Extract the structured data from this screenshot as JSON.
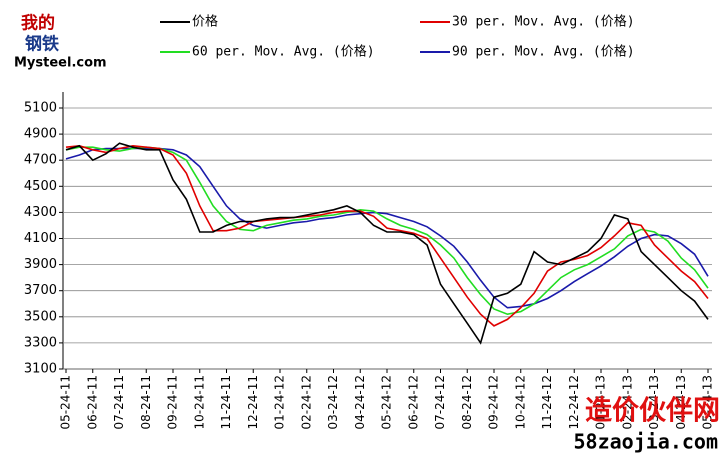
{
  "chart_data": {
    "type": "line",
    "logo": {
      "top": "我的",
      "middle": "钢铁",
      "bottom": "Mysteel.com"
    },
    "watermark": {
      "title": "造价伙伴网",
      "url": "58zaojia.com"
    },
    "categories": [
      "05-24-11",
      null,
      "06-24-11",
      null,
      "07-24-11",
      null,
      "08-24-11",
      null,
      "09-24-11",
      null,
      "10-24-11",
      null,
      "11-24-11",
      null,
      "12-24-11",
      null,
      "01-24-12",
      null,
      "02-24-12",
      null,
      "03-24-12",
      null,
      "04-24-12",
      null,
      "05-24-12",
      null,
      "06-24-12",
      null,
      "07-24-12",
      null,
      "08-24-12",
      null,
      "09-24-12",
      null,
      "10-24-12",
      null,
      "11-24-12",
      null,
      "12-24-12",
      null,
      "01-24-13",
      null,
      "02-24-13",
      null,
      "03-24-13",
      null,
      "04-24-13",
      null,
      "05-24-13"
    ],
    "series": [
      {
        "name": "价格",
        "color": "#000000",
        "values": [
          4780,
          4810,
          4700,
          4750,
          4830,
          4800,
          4780,
          4780,
          4550,
          4400,
          4150,
          4150,
          4200,
          4230,
          4230,
          4250,
          4260,
          4260,
          4280,
          4300,
          4320,
          4350,
          4300,
          4200,
          4150,
          4150,
          4130,
          4050,
          3750,
          3600,
          3450,
          3300,
          3650,
          3680,
          3750,
          4000,
          3920,
          3900,
          3950,
          4000,
          4100,
          4280,
          4250,
          4000,
          3900,
          3800,
          3700,
          3620,
          3480
        ]
      },
      {
        "name": "30 per. Mov. Avg. (价格)",
        "color": "#e00000",
        "values": [
          4800,
          4810,
          4780,
          4760,
          4790,
          4810,
          4800,
          4790,
          4740,
          4600,
          4350,
          4160,
          4160,
          4180,
          4230,
          4240,
          4250,
          4260,
          4270,
          4280,
          4300,
          4310,
          4310,
          4270,
          4180,
          4160,
          4140,
          4100,
          3950,
          3800,
          3650,
          3520,
          3430,
          3480,
          3570,
          3680,
          3850,
          3920,
          3940,
          3970,
          4030,
          4120,
          4220,
          4200,
          4050,
          3950,
          3850,
          3770,
          3640
        ]
      },
      {
        "name": "60 per. Mov. Avg. (价格)",
        "color": "#22dd22",
        "values": [
          4780,
          4800,
          4800,
          4780,
          4770,
          4790,
          4800,
          4790,
          4760,
          4700,
          4530,
          4350,
          4230,
          4170,
          4160,
          4200,
          4220,
          4240,
          4250,
          4270,
          4280,
          4300,
          4320,
          4310,
          4250,
          4200,
          4170,
          4130,
          4050,
          3950,
          3800,
          3670,
          3560,
          3520,
          3540,
          3600,
          3700,
          3800,
          3860,
          3900,
          3960,
          4020,
          4120,
          4170,
          4150,
          4080,
          3950,
          3860,
          3720
        ]
      },
      {
        "name": "90 per. Mov. Avg. (价格)",
        "color": "#1a1aaa",
        "values": [
          4710,
          4740,
          4780,
          4790,
          4790,
          4790,
          4790,
          4790,
          4780,
          4740,
          4650,
          4500,
          4350,
          4250,
          4200,
          4180,
          4200,
          4220,
          4230,
          4250,
          4260,
          4280,
          4290,
          4300,
          4290,
          4260,
          4230,
          4190,
          4120,
          4040,
          3920,
          3780,
          3650,
          3570,
          3580,
          3600,
          3640,
          3700,
          3770,
          3830,
          3890,
          3960,
          4040,
          4100,
          4130,
          4120,
          4060,
          3980,
          3810
        ]
      }
    ],
    "ylim": [
      3100,
      5100
    ],
    "yticks": [
      3100,
      3300,
      3500,
      3700,
      3900,
      4100,
      4300,
      4500,
      4700,
      4900,
      5100
    ],
    "grid": true
  }
}
